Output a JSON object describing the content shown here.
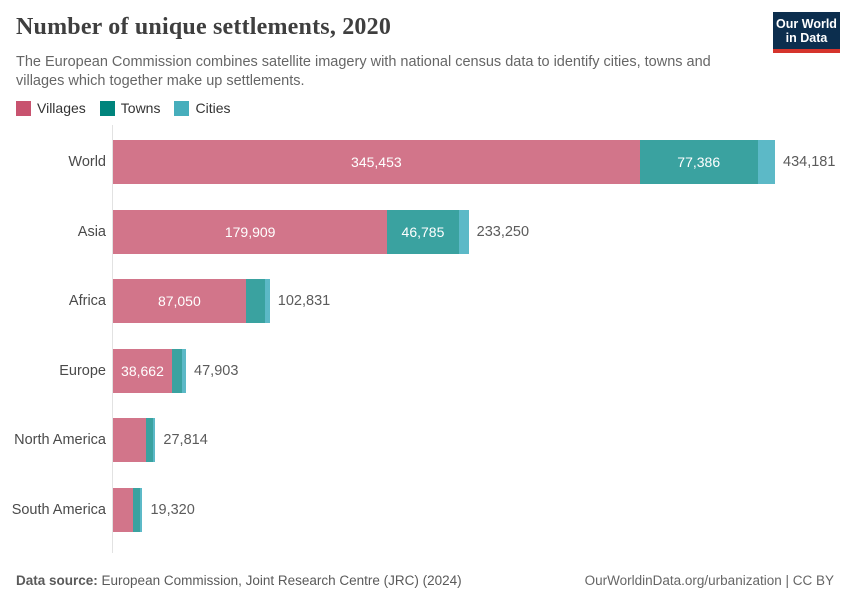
{
  "header": {
    "title": "Number of unique settlements, 2020",
    "subtitle": "The European Commission combines satellite imagery with national census data to identify cities, towns and villages which together make up settlements.",
    "logo": {
      "line1": "Our World",
      "line2": "in Data",
      "bg_color": "#0c2e4e",
      "accent_color": "#d5342c"
    }
  },
  "legend": {
    "items": [
      {
        "label": "Villages",
        "color": "#c8536f"
      },
      {
        "label": "Towns",
        "color": "#00847c"
      },
      {
        "label": "Cities",
        "color": "#47aebc"
      }
    ]
  },
  "chart_data": {
    "type": "bar",
    "orientation": "horizontal",
    "stacked": true,
    "grid": false,
    "legend_position": "top-left",
    "categories": [
      "World",
      "Asia",
      "Africa",
      "Europe",
      "North America",
      "South America"
    ],
    "series": [
      {
        "name": "Villages",
        "bar_color": "#d2758a",
        "values": [
          345453,
          179909,
          87050,
          38662,
          21700,
          13100
        ]
      },
      {
        "name": "Towns",
        "bar_color": "#3aa2a0",
        "values": [
          77386,
          46785,
          12800,
          6800,
          4600,
          4600
        ]
      },
      {
        "name": "Cities",
        "bar_color": "#5cb9c7",
        "values": [
          11342,
          6556,
          2981,
          2441,
          1514,
          1620
        ]
      }
    ],
    "totals": [
      434181,
      233250,
      102831,
      47903,
      27814,
      19320
    ],
    "total_labels": [
      "434,181",
      "233,250",
      "102,831",
      "47,903",
      "27,814",
      "19,320"
    ],
    "segment_labels": [
      [
        "345,453",
        "77,386",
        null
      ],
      [
        "179,909",
        "46,785",
        null
      ],
      [
        "87,050",
        null,
        null
      ],
      [
        "38,662",
        null,
        null
      ],
      [
        null,
        null,
        null
      ],
      [
        null,
        null,
        null
      ]
    ],
    "xlim": [
      0,
      434181
    ]
  },
  "footer": {
    "datasource_label": "Data source:",
    "datasource_text": " European Commission, Joint Research Centre (JRC) (2024)",
    "right_text": "OurWorldinData.org/urbanization | CC BY"
  }
}
